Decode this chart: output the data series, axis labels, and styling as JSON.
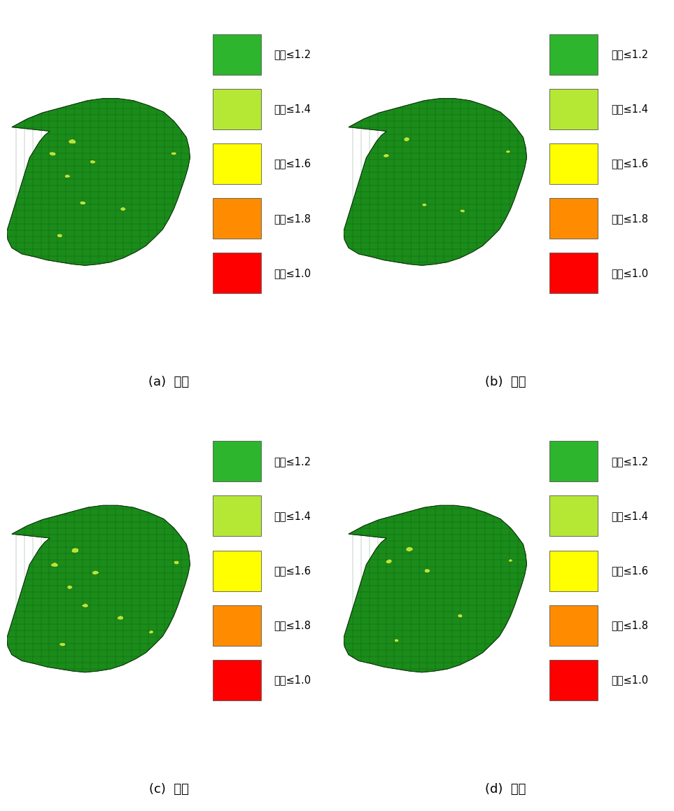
{
  "panels": [
    {
      "label": "(a)  화재",
      "col": 0,
      "row": 0
    },
    {
      "label": "(b)  산불",
      "col": 1,
      "row": 0
    },
    {
      "label": "(c)  붕괴",
      "col": 0,
      "row": 1
    },
    {
      "label": "(d)  폭발",
      "col": 1,
      "row": 1
    }
  ],
  "legend_items": [
    {
      "color": "#2db52d",
      "label": "지수≤1.2"
    },
    {
      "color": "#b5e835",
      "label": "지수≤1.4"
    },
    {
      "color": "#ffff00",
      "label": "지수≤1.6"
    },
    {
      "color": "#ff8c00",
      "label": "지수≤1.8"
    },
    {
      "color": "#ff0000",
      "label": "지수≤1.0"
    }
  ],
  "dark_green": "#1a8c1a",
  "light_green": "#b5e835",
  "label_fontsize": 13,
  "legend_fontsize": 10.5,
  "fig_width": 9.63,
  "fig_height": 11.59,
  "background_color": "#ffffff",
  "korea_lon_range": [
    125.8,
    129.6
  ],
  "korea_lat_range": [
    34.0,
    38.7
  ]
}
